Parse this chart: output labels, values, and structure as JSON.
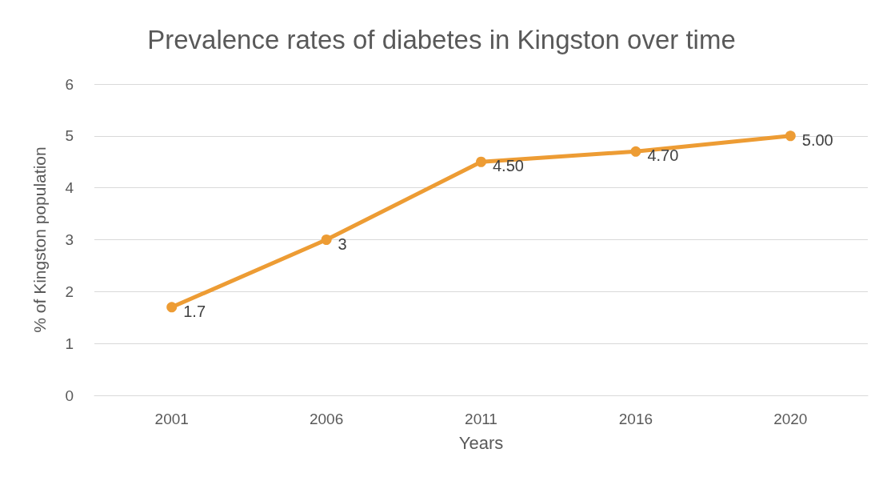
{
  "chart_data": {
    "type": "line",
    "title": "Prevalence rates of diabetes in Kingston over time",
    "xlabel": "Years",
    "ylabel": "% of Kingston population",
    "categories": [
      "2001",
      "2006",
      "2011",
      "2016",
      "2020"
    ],
    "series": [
      {
        "color": "#ed9c34",
        "values": [
          1.7,
          3,
          4.5,
          4.7,
          5.0
        ],
        "value_labels": [
          "1.7",
          "3",
          "4.50",
          "4.70",
          "5.00"
        ]
      }
    ],
    "ylim": [
      0,
      6
    ],
    "yticks": [
      0,
      1,
      2,
      3,
      4,
      5,
      6
    ],
    "grid": "y",
    "marker": "circle",
    "line_style": "solid"
  }
}
